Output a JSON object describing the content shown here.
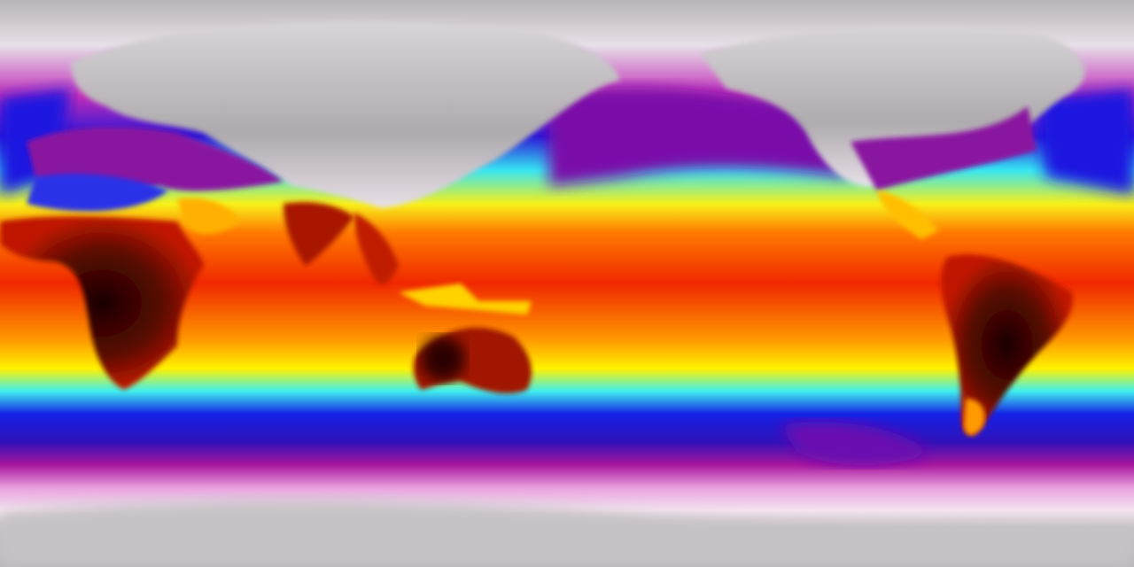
{
  "map": {
    "projection": "equirectangular",
    "colormap": {
      "polar_land": "#c8c4c8",
      "cold_white": "#f4e6f2",
      "magenta": "#a0139e",
      "blue": "#1a1ee8",
      "cyan": "#3ff0f0",
      "yellow": "#fff200",
      "orange": "#ff9900",
      "red": "#f02a00",
      "hot_land": "#5a0a00",
      "hottest": "#1a0000"
    }
  }
}
